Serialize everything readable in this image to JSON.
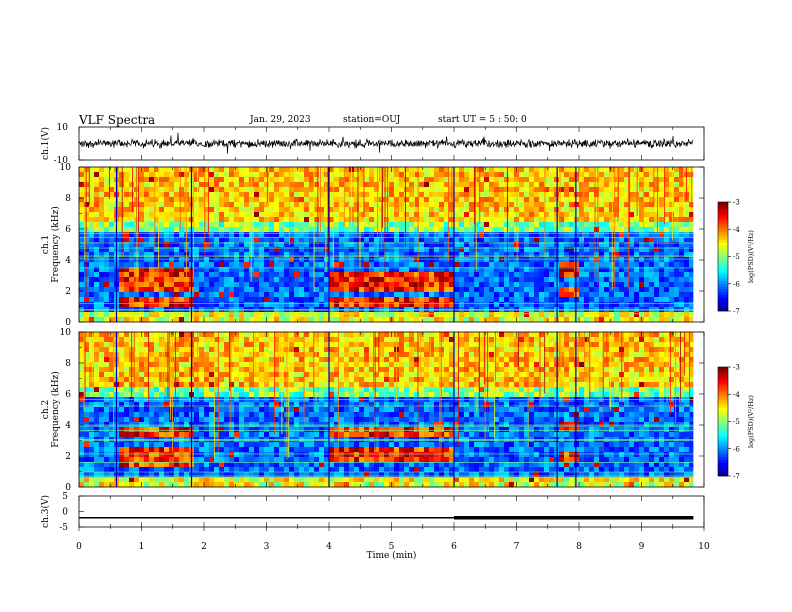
{
  "header": {
    "title": "VLF Spectra",
    "date": "Jan. 29, 2023",
    "station": "station=OUJ",
    "start_ut": "start  UT =  5 : 50: 0"
  },
  "chart_data": [
    {
      "type": "line",
      "panel": "ch1-waveform",
      "ylabel": "ch.1(V)",
      "y_ticks": [
        "10",
        "-10"
      ],
      "ylim": [
        -10,
        10
      ],
      "baseline": 0,
      "noise_amplitude": 2,
      "xlim": [
        0,
        10
      ]
    },
    {
      "type": "heatmap",
      "panel": "ch1-spectrogram",
      "ylabel": "Frequency (kHz)",
      "channel_label": "ch.1",
      "ylim": [
        0,
        10
      ],
      "y_ticks": [
        "0",
        "2",
        "4",
        "6",
        "8",
        "10"
      ],
      "xlim": [
        0,
        10
      ],
      "data_end_min": 9.83,
      "colorbar": {
        "label": "log(PSD)(V²/Hz)",
        "range": [
          -7,
          -3
        ],
        "ticks": [
          "-3",
          "-4",
          "-5",
          "-6",
          "-7"
        ]
      },
      "segments_min": [
        0,
        0.6,
        1.8,
        4.0,
        6.0,
        7.65,
        7.95,
        9.83
      ],
      "activity_min": [
        {
          "t0": 0.6,
          "t1": 1.8,
          "freq_khz": [
            1.3,
            2.4,
            3.1
          ]
        },
        {
          "t0": 4.0,
          "t1": 6.0,
          "freq_khz": [
            1.3,
            2.4,
            3.0
          ]
        },
        {
          "t0": 7.65,
          "t1": 7.95,
          "freq_khz": [
            2.0,
            3.4
          ]
        }
      ]
    },
    {
      "type": "heatmap",
      "panel": "ch2-spectrogram",
      "ylabel": "Frequency (kHz)",
      "channel_label": "ch.2",
      "ylim": [
        0,
        10
      ],
      "y_ticks": [
        "0",
        "2",
        "4",
        "6",
        "8",
        "10"
      ],
      "xlim": [
        0,
        10
      ],
      "data_end_min": 9.83,
      "colorbar": {
        "label": "log(PSD)(V²/Hz)",
        "range": [
          -7,
          -3
        ],
        "ticks": [
          "-3",
          "-4",
          "-5",
          "-6",
          "-7"
        ]
      },
      "segments_min": [
        0,
        0.6,
        1.8,
        4.0,
        6.0,
        7.65,
        7.95,
        9.83
      ],
      "activity_min": [
        {
          "t0": 0.6,
          "t1": 1.8,
          "freq_khz": [
            1.6,
            2.3,
            3.6
          ]
        },
        {
          "t0": 4.0,
          "t1": 6.0,
          "freq_khz": [
            1.9,
            2.3,
            3.5
          ]
        },
        {
          "t0": 7.65,
          "t1": 7.95,
          "freq_khz": [
            2.0,
            3.8
          ]
        }
      ]
    },
    {
      "type": "line",
      "panel": "ch3-trace",
      "ylabel": "ch.3(V)",
      "y_ticks": [
        "5",
        "0",
        "-5"
      ],
      "ylim": [
        -5,
        5
      ],
      "xlim": [
        0,
        10
      ],
      "x_ticks": [
        "0",
        "1",
        "2",
        "3",
        "4",
        "5",
        "6",
        "7",
        "8",
        "9",
        "10"
      ],
      "xlabel": "Time (min)",
      "segments": [
        {
          "x": [
            0,
            6.0
          ],
          "y": -2.0,
          "weight": "thin"
        },
        {
          "x": [
            6.0,
            9.83
          ],
          "y": -2.0,
          "weight": "thick"
        }
      ]
    }
  ]
}
